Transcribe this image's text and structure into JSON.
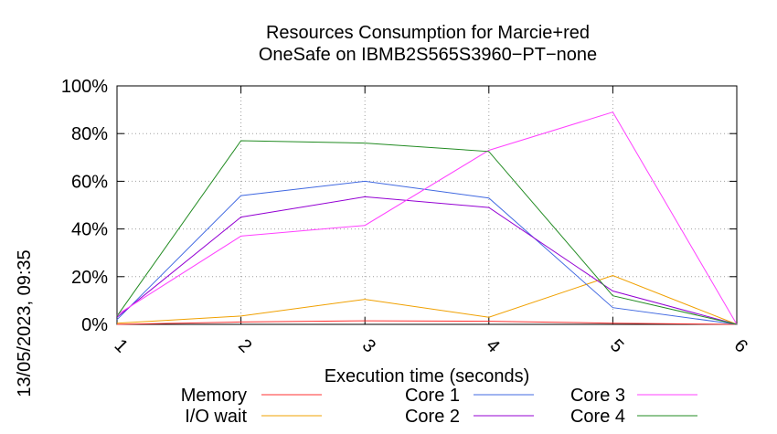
{
  "chart_data": {
    "type": "line",
    "title_lines": [
      "Resources Consumption for Marcie+red",
      "OneSafe on IBMB2S565S3960−PT−none"
    ],
    "xlabel": "Execution time (seconds)",
    "ylabel": "",
    "side_label": "13/05/2023, 09:35",
    "x": [
      1,
      2,
      3,
      4,
      5,
      6
    ],
    "x_ticks": [
      "1",
      "2",
      "3",
      "4",
      "5",
      "6"
    ],
    "xlim": [
      1,
      6
    ],
    "y_ticks": [
      "0%",
      "20%",
      "40%",
      "60%",
      "80%",
      "100%"
    ],
    "y_tick_values": [
      0,
      20,
      40,
      60,
      80,
      100
    ],
    "ylim": [
      0,
      100
    ],
    "grid": true,
    "legend_position": "bottom",
    "series": [
      {
        "name": "Memory",
        "color": "#ff3030",
        "values": [
          0,
          1,
          1.5,
          1.3,
          0.5,
          0
        ]
      },
      {
        "name": "I/O wait",
        "color": "#f0a000",
        "values": [
          0.5,
          3.5,
          10.5,
          3,
          20.5,
          0
        ]
      },
      {
        "name": "Core 1",
        "color": "#4169e1",
        "values": [
          2,
          54,
          60,
          53,
          7,
          0
        ]
      },
      {
        "name": "Core 2",
        "color": "#9400d3",
        "values": [
          3,
          45,
          53.5,
          49,
          14,
          0
        ]
      },
      {
        "name": "Core 3",
        "color": "#ff40ff",
        "values": [
          4,
          37,
          41.5,
          73,
          89,
          0
        ]
      },
      {
        "name": "Core 4",
        "color": "#228b22",
        "values": [
          3.5,
          77,
          76,
          72.5,
          12,
          0
        ]
      }
    ]
  }
}
